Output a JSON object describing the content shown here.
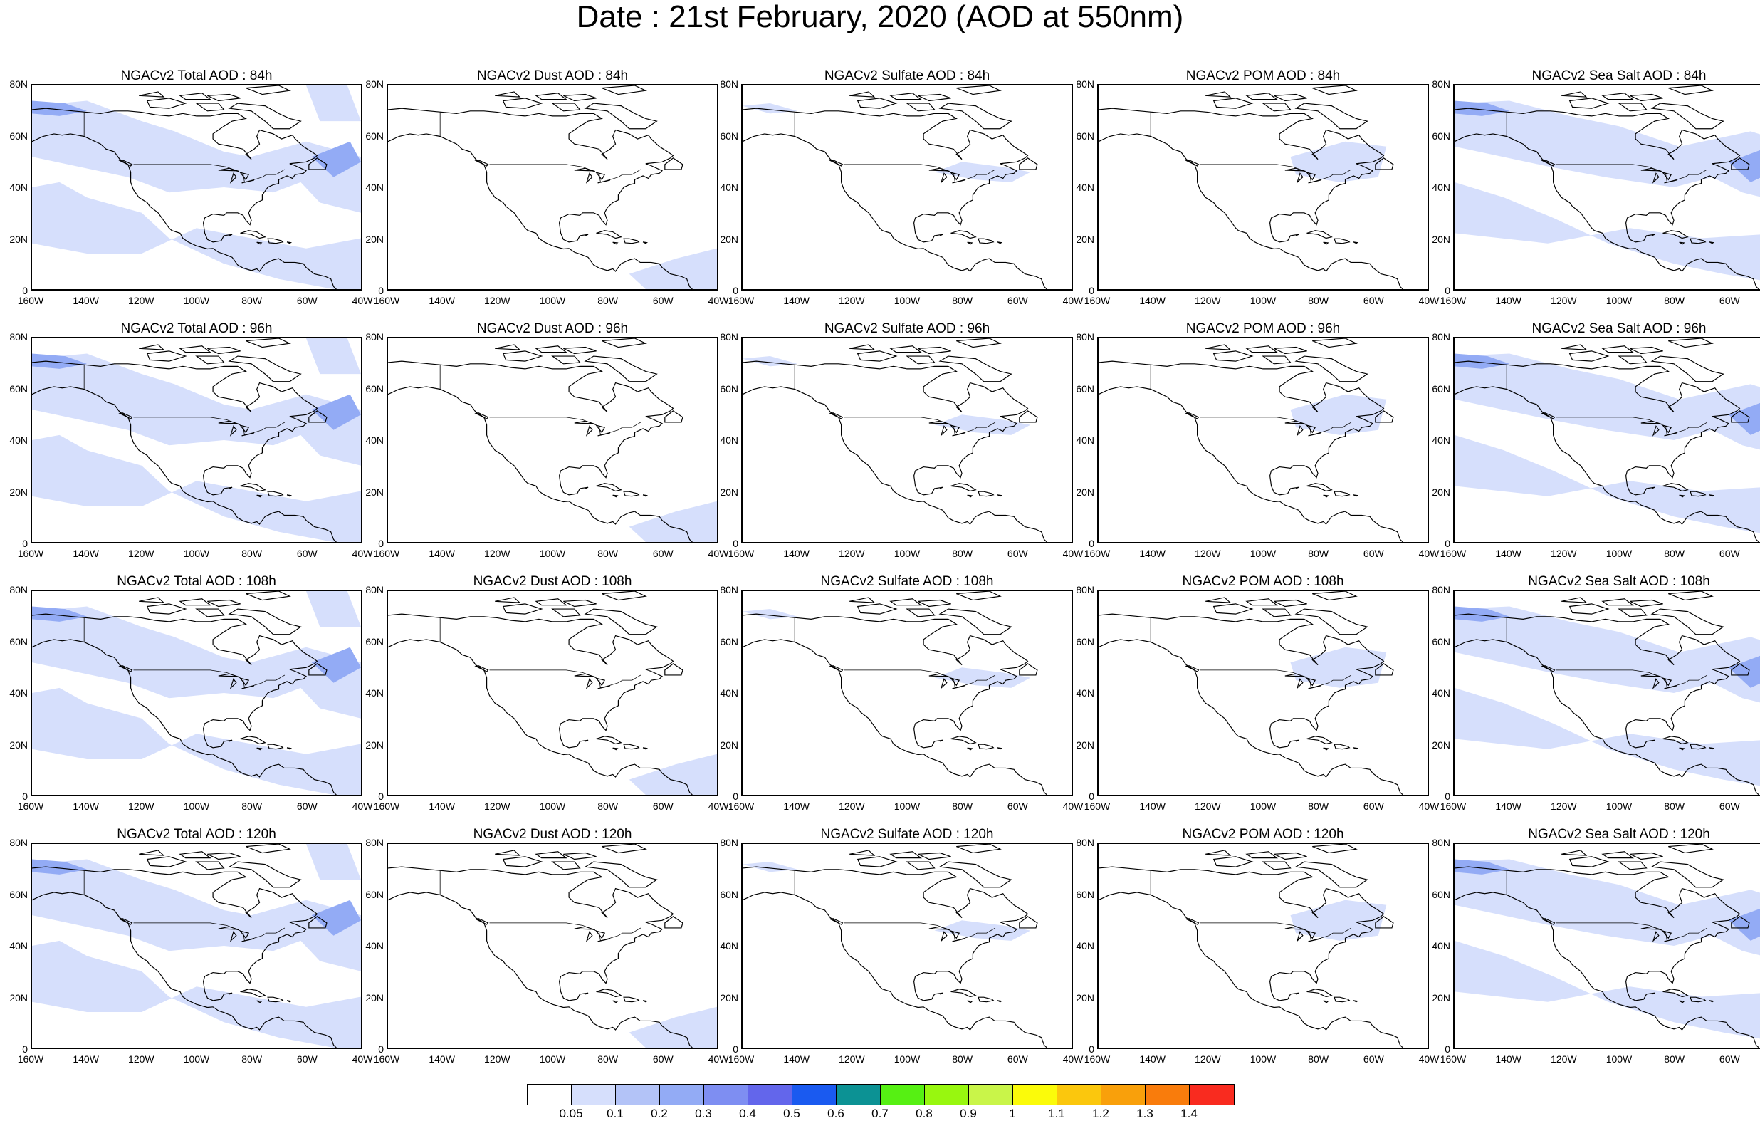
{
  "title": "Date : 21st February, 2020 (AOD at 550nm)",
  "axes": {
    "x_ticks": [
      "160W",
      "140W",
      "120W",
      "100W",
      "80W",
      "60W",
      "40W"
    ],
    "y_ticks": [
      "80N",
      "60N",
      "40N",
      "20N",
      "0"
    ],
    "lon_range": [
      -160,
      -40
    ],
    "lat_range": [
      0,
      80
    ]
  },
  "panels": [
    {
      "title": "NGACv2 Total AOD : 84h",
      "species": "total"
    },
    {
      "title": "NGACv2 Dust AOD : 84h",
      "species": "dust"
    },
    {
      "title": "NGACv2 Sulfate AOD : 84h",
      "species": "sulfate"
    },
    {
      "title": "NGACv2 POM AOD : 84h",
      "species": "pom"
    },
    {
      "title": "NGACv2 Sea Salt AOD : 84h",
      "species": "seasalt"
    },
    {
      "title": "NGACv2 Total AOD : 96h",
      "species": "total"
    },
    {
      "title": "NGACv2 Dust AOD : 96h",
      "species": "dust"
    },
    {
      "title": "NGACv2 Sulfate AOD : 96h",
      "species": "sulfate"
    },
    {
      "title": "NGACv2 POM AOD : 96h",
      "species": "pom"
    },
    {
      "title": "NGACv2 Sea Salt AOD : 96h",
      "species": "seasalt"
    },
    {
      "title": "NGACv2 Total AOD : 108h",
      "species": "total"
    },
    {
      "title": "NGACv2 Dust AOD : 108h",
      "species": "dust"
    },
    {
      "title": "NGACv2 Sulfate AOD : 108h",
      "species": "sulfate"
    },
    {
      "title": "NGACv2 POM AOD : 108h",
      "species": "pom"
    },
    {
      "title": "NGACv2 Sea Salt AOD : 108h",
      "species": "seasalt"
    },
    {
      "title": "NGACv2 Total AOD : 120h",
      "species": "total"
    },
    {
      "title": "NGACv2 Dust AOD : 120h",
      "species": "dust"
    },
    {
      "title": "NGACv2 Sulfate AOD : 120h",
      "species": "sulfate"
    },
    {
      "title": "NGACv2 POM AOD : 120h",
      "species": "pom"
    },
    {
      "title": "NGACv2 Sea Salt  AOD : 120h",
      "species": "seasalt"
    }
  ],
  "colorbar": {
    "labels": [
      "0.05",
      "0.1",
      "0.2",
      "0.3",
      "0.4",
      "0.5",
      "0.6",
      "0.7",
      "0.8",
      "0.9",
      "1",
      "1.1",
      "1.2",
      "1.3",
      "1.4"
    ],
    "colors": [
      "#ffffff",
      "#d6dffc",
      "#b3c3f7",
      "#93abf5",
      "#7e8ef2",
      "#6366eb",
      "#1a5af0",
      "#0c9294",
      "#56f013",
      "#98f70f",
      "#c9f549",
      "#fbfb0a",
      "#fbc70d",
      "#f9a00b",
      "#f97c0c",
      "#f92b1f"
    ]
  },
  "colors": {
    "aod_light": "#d6dffc",
    "aod_medium": "#b3c3f7",
    "aod_high": "#93abf5",
    "coastline": "#000000"
  }
}
